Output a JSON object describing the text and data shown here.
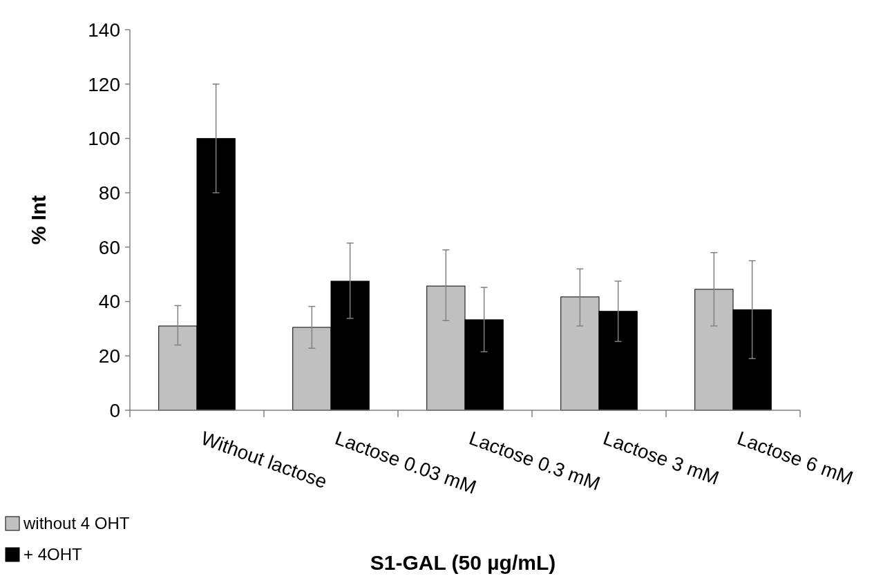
{
  "chart_data": {
    "type": "bar",
    "xlabel": "S1-GAL (50 µg/mL)",
    "ylabel": "% Int",
    "categories": [
      "Without lactose",
      "Lactose 0.03 mM",
      "Lactose 0.3 mM",
      "Lactose 3 mM",
      "Lactose 6 mM"
    ],
    "series": [
      {
        "name": "without 4 OHT",
        "color": "#c0c0c0",
        "values": [
          31,
          30.5,
          45.7,
          41.7,
          44.5
        ],
        "errors": [
          [
            24,
            38.5
          ],
          [
            22.8,
            38.2
          ],
          [
            33,
            59
          ],
          [
            31,
            52
          ],
          [
            31,
            58
          ]
        ]
      },
      {
        "name": "+ 4OHT",
        "color": "#000000",
        "values": [
          100,
          47.5,
          33.3,
          36.4,
          37
        ],
        "errors": [
          [
            80,
            120
          ],
          [
            33.8,
            61.5
          ],
          [
            21.5,
            45.2
          ],
          [
            25.3,
            47.5
          ],
          [
            19,
            55
          ]
        ]
      }
    ],
    "ylim": [
      0,
      140
    ],
    "yticks": [
      0,
      20,
      40,
      60,
      80,
      100,
      120,
      140
    ],
    "grid": false,
    "legend": "bottom left"
  }
}
